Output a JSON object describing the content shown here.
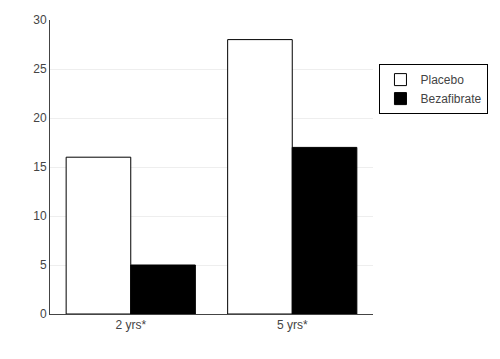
{
  "chart_data": {
    "type": "bar",
    "categories": [
      "2 yrs*",
      "5 yrs*"
    ],
    "series": [
      {
        "name": "Placebo",
        "color": "#ffffff",
        "values": [
          16,
          28
        ]
      },
      {
        "name": "Bezafibrate",
        "color": "#000000",
        "values": [
          5,
          17
        ]
      }
    ],
    "ylim": [
      0,
      30
    ],
    "yticks": [
      0,
      5,
      10,
      15,
      20,
      25,
      30
    ],
    "grid": true,
    "legend": "right"
  }
}
